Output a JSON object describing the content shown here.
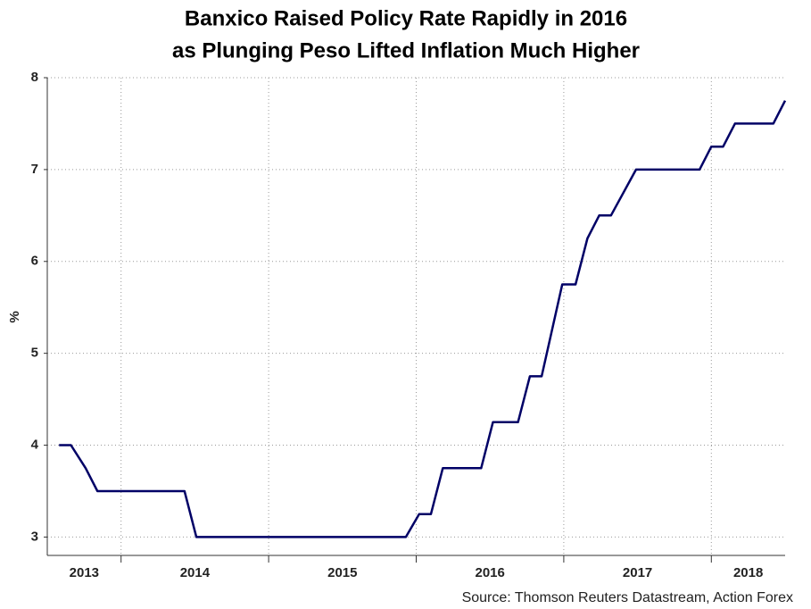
{
  "chart_data": {
    "type": "line",
    "title": [
      "Banxico Raised Policy Rate Rapidly in 2016",
      "as Plunging Peso Lifted Inflation Much Higher"
    ],
    "y_label": "%",
    "source": "Source: Thomson Reuters Datastream, Action Forex",
    "x": [
      2013.58,
      2013.66,
      2013.76,
      2013.84,
      2014.43,
      2014.51,
      2015.93,
      2016.02,
      2016.1,
      2016.18,
      2016.44,
      2016.52,
      2016.69,
      2016.77,
      2016.85,
      2016.99,
      2017.08,
      2017.16,
      2017.24,
      2017.32,
      2017.49,
      2017.92,
      2018.0,
      2018.08,
      2018.16,
      2018.42,
      2018.5
    ],
    "series": [
      {
        "name": "Policy rate",
        "color": "#000066",
        "values": [
          4,
          4,
          3.75,
          3.5,
          3.5,
          3,
          3,
          3.25,
          3.25,
          3.75,
          3.75,
          4.25,
          4.25,
          4.75,
          4.75,
          5.75,
          5.75,
          6.25,
          6.5,
          6.5,
          7,
          7,
          7.25,
          7.25,
          7.5,
          7.5,
          7.75
        ]
      }
    ],
    "xlim": [
      2013.5,
      2018.5
    ],
    "xticks": [
      2013,
      2014,
      2015,
      2016,
      2017,
      2018
    ],
    "ylim": [
      2.8,
      8
    ],
    "yticks": [
      3,
      4,
      5,
      6,
      7,
      8
    ],
    "grid": true
  }
}
